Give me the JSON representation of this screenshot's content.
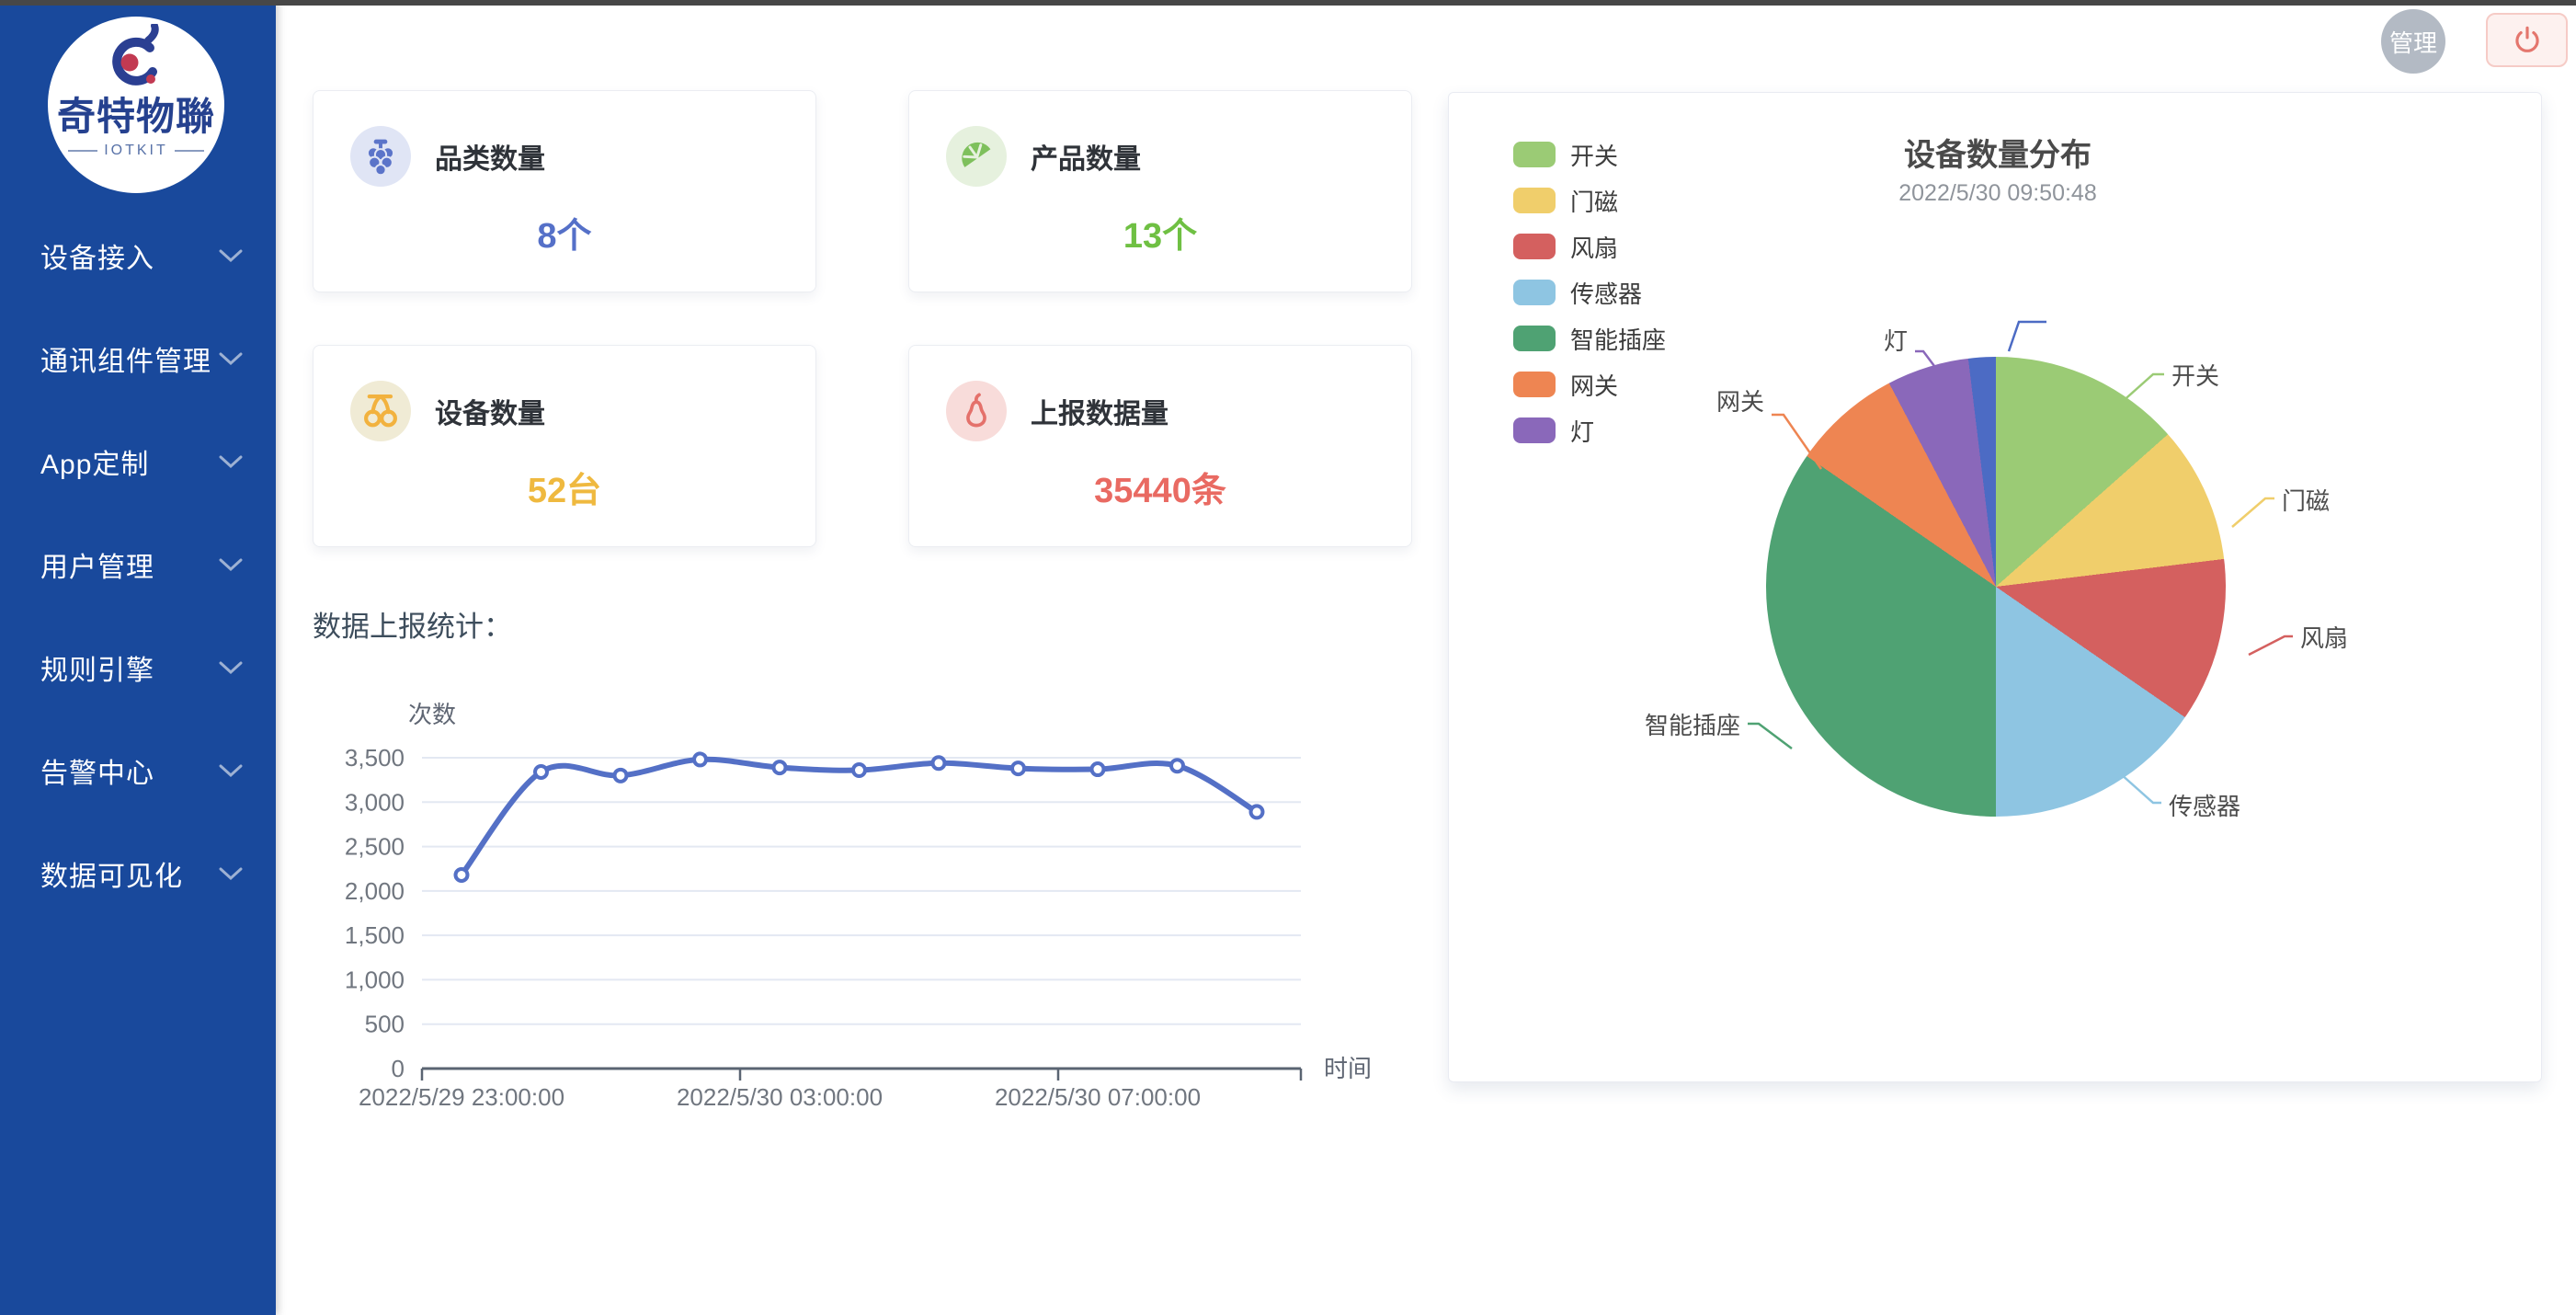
{
  "header": {
    "avatar_label": "管理",
    "logout_tooltip": "power"
  },
  "sidebar": {
    "logo": {
      "title": "奇特物聯",
      "subtitle": "IOTKIT"
    },
    "items": [
      {
        "label": "设备接入"
      },
      {
        "label": "通讯组件管理"
      },
      {
        "label": "App定制"
      },
      {
        "label": "用户管理"
      },
      {
        "label": "规则引擎"
      },
      {
        "label": "告警中心"
      },
      {
        "label": "数据可见化"
      }
    ]
  },
  "colors": {
    "sidebar_blue": "#19499c",
    "line_blue": "#5470c6"
  },
  "stats": {
    "cards": [
      {
        "label": "品类数量",
        "value": "8个",
        "icon": "grapes-icon",
        "value_color": "#5570c8",
        "icon_bg": "#e0e5f5",
        "icon_color": "#5b74c9"
      },
      {
        "label": "产品数量",
        "value": "13个",
        "icon": "lemon-icon",
        "value_color": "#6fc043",
        "icon_bg": "#e6f1de",
        "icon_color": "#7ec05c"
      },
      {
        "label": "设备数量",
        "value": "52台",
        "icon": "cherries-icon",
        "value_color": "#efb93f",
        "icon_bg": "#f0ebd5",
        "icon_color": "#f2b23e"
      },
      {
        "label": "上报数据量",
        "value": "35440条",
        "icon": "pear-icon",
        "value_color": "#e96a62",
        "icon_bg": "#f8dcda",
        "icon_color": "#e4716b"
      }
    ]
  },
  "chart_data": [
    {
      "type": "line",
      "title": "数据上报统计：",
      "xlabel": "时间",
      "ylabel": "次数",
      "x_tick_labels": [
        "2022/5/29 23:00:00",
        "2022/5/30 03:00:00",
        "2022/5/30 07:00:00"
      ],
      "values": [
        2180,
        3340,
        3300,
        3480,
        3390,
        3360,
        3440,
        3380,
        3370,
        3410,
        2890
      ],
      "ylim": [
        0,
        3500
      ],
      "yticks": [
        0,
        500,
        1000,
        1500,
        2000,
        2500,
        3000,
        3500
      ],
      "color": "#5470c6",
      "grid": true
    },
    {
      "type": "pie",
      "title": "设备数量分布",
      "subtitle": "2022/5/30 09:50:48",
      "legend_position": "top-left",
      "total_label_unit": "台",
      "slices": [
        {
          "name": "开关",
          "value": 7,
          "color": "#9bcb75"
        },
        {
          "name": "门磁",
          "value": 5,
          "color": "#f0ce6b"
        },
        {
          "name": "风扇",
          "value": 6,
          "color": "#d4605f"
        },
        {
          "name": "传感器",
          "value": 8,
          "color": "#8ec5e2"
        },
        {
          "name": "智能插座",
          "value": 18,
          "color": "#4fa273"
        },
        {
          "name": "网关",
          "value": 4,
          "color": "#ee8552"
        },
        {
          "name": "灯",
          "value": 3,
          "color": "#8a68ba"
        },
        {
          "name": "",
          "value": 1,
          "color": "#4c6bc4",
          "label_hidden": true
        }
      ],
      "legend": [
        "开关",
        "门磁",
        "风扇",
        "传感器",
        "智能插座",
        "网关",
        "灯"
      ]
    }
  ]
}
